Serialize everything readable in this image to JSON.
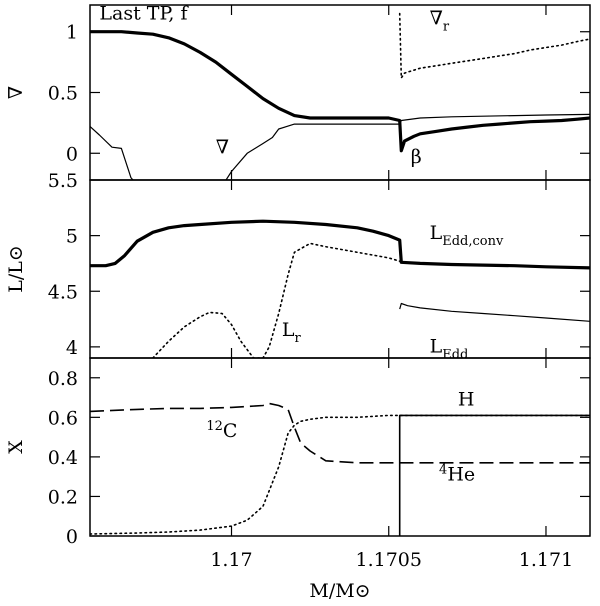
{
  "chart_data": {
    "type": "line",
    "xlabel": "M/M⊙",
    "x_ticks": [
      {
        "value": 1.17,
        "label": "1.17"
      },
      {
        "value": 1.1705,
        "label": "1.1705"
      },
      {
        "value": 1.171,
        "label": "1.171"
      }
    ],
    "xlim": [
      1.16955,
      1.17114
    ],
    "panels": [
      {
        "id": "top",
        "ylabel": "∇",
        "ylim": [
          -0.22,
          1.22
        ],
        "y_ticks": [
          {
            "value": 0,
            "label": "0"
          },
          {
            "value": 0.5,
            "label": "0.5"
          },
          {
            "value": 1,
            "label": "1"
          }
        ],
        "labels": [
          {
            "text": "Last TP, f",
            "x": 1.16958,
            "y": 1.1
          },
          {
            "text": "∇",
            "x": 1.16995,
            "y": 0.0
          },
          {
            "text": "β",
            "x": 1.17057,
            "y": -0.08
          }
        ],
        "sub_labels": [
          {
            "base": "∇",
            "sub": "r",
            "x": 1.17063,
            "y": 1.06
          }
        ],
        "series": [
          {
            "style": "thick",
            "x": [
              1.16955,
              1.1696,
              1.16965,
              1.1697,
              1.16975,
              1.1698,
              1.16985,
              1.1699,
              1.16995,
              1.17,
              1.17005,
              1.1701,
              1.17015,
              1.1702,
              1.17025,
              1.1703,
              1.17035,
              1.1704,
              1.17045,
              1.1705,
              1.170535,
              1.17054,
              1.17055,
              1.17058,
              1.1706,
              1.17065,
              1.1707,
              1.17075,
              1.1708,
              1.17085,
              1.1709,
              1.17095,
              1.171,
              1.17105,
              1.1711,
              1.17114
            ],
            "y": [
              1.0,
              1.0,
              1.0,
              0.99,
              0.98,
              0.95,
              0.9,
              0.83,
              0.75,
              0.65,
              0.55,
              0.45,
              0.37,
              0.31,
              0.29,
              0.29,
              0.29,
              0.29,
              0.29,
              0.29,
              0.27,
              0.02,
              0.1,
              0.14,
              0.16,
              0.18,
              0.2,
              0.215,
              0.23,
              0.24,
              0.25,
              0.26,
              0.265,
              0.27,
              0.28,
              0.29
            ]
          },
          {
            "style": "thin",
            "x": [
              1.16955,
              1.16958,
              1.16962,
              1.16965,
              1.16968,
              1.16972
            ],
            "y": [
              0.22,
              0.15,
              0.05,
              0.04,
              -0.2,
              -0.32
            ]
          },
          {
            "style": "thin",
            "x": [
              1.16995,
              1.17,
              1.17005,
              1.1701,
              1.17013,
              1.17015,
              1.1702,
              1.1703,
              1.1704,
              1.1705,
              1.170535,
              1.17054,
              1.1706,
              1.1707,
              1.1708,
              1.1709,
              1.171,
              1.17114
            ],
            "y": [
              -0.35,
              -0.15,
              0.0,
              0.08,
              0.13,
              0.2,
              0.24,
              0.24,
              0.24,
              0.24,
              0.24,
              0.27,
              0.29,
              0.3,
              0.305,
              0.31,
              0.315,
              0.32
            ]
          },
          {
            "style": "dotted",
            "x": [
              1.170535,
              1.17054,
              1.17055,
              1.1706,
              1.17065,
              1.1707,
              1.17075,
              1.1708,
              1.17085,
              1.1709,
              1.17095,
              1.171,
              1.17105,
              1.1711,
              1.17114
            ],
            "y": [
              1.15,
              0.62,
              0.66,
              0.7,
              0.72,
              0.74,
              0.76,
              0.78,
              0.8,
              0.82,
              0.85,
              0.87,
              0.89,
              0.92,
              0.94
            ]
          }
        ]
      },
      {
        "id": "middle",
        "ylabel": "L/L⊙",
        "ylim": [
          3.9,
          5.5
        ],
        "y_ticks": [
          {
            "value": 4,
            "label": "4"
          },
          {
            "value": 4.5,
            "label": "4.5"
          },
          {
            "value": 5,
            "label": "5"
          },
          {
            "value": 5.5,
            "label": "5.5"
          }
        ],
        "sub_labels": [
          {
            "base": "L",
            "sub": "Edd,conv",
            "x": 1.17063,
            "y": 4.97
          },
          {
            "base": "L",
            "sub": "r",
            "x": 1.17016,
            "y": 4.1
          },
          {
            "base": "L",
            "sub": "Edd",
            "x": 1.17063,
            "y": 3.95
          }
        ],
        "series": [
          {
            "style": "thick",
            "x": [
              1.16955,
              1.1696,
              1.16963,
              1.16966,
              1.1697,
              1.16975,
              1.1698,
              1.16985,
              1.1699,
              1.17,
              1.1701,
              1.1702,
              1.1703,
              1.1704,
              1.17045,
              1.1705,
              1.170535,
              1.17054,
              1.1706,
              1.1707,
              1.1708,
              1.1709,
              1.171,
              1.17114
            ],
            "y": [
              4.73,
              4.73,
              4.75,
              4.82,
              4.95,
              5.03,
              5.07,
              5.09,
              5.1,
              5.12,
              5.13,
              5.12,
              5.1,
              5.07,
              5.04,
              5.0,
              4.96,
              4.76,
              4.75,
              4.74,
              4.735,
              4.73,
              4.72,
              4.71
            ]
          },
          {
            "style": "thin",
            "x": [
              1.170535,
              1.17054,
              1.17056,
              1.1706,
              1.1707,
              1.1708,
              1.1709,
              1.171,
              1.17114
            ],
            "y": [
              4.34,
              4.39,
              4.37,
              4.35,
              4.32,
              4.3,
              4.28,
              4.26,
              4.23
            ]
          },
          {
            "style": "dotted",
            "x": [
              1.16975,
              1.1698,
              1.16985,
              1.1699,
              1.16993,
              1.16997,
              1.17,
              1.17003,
              1.17007,
              1.1701,
              1.17012,
              1.17015,
              1.17018,
              1.1702,
              1.17025,
              1.1703,
              1.1704,
              1.1705,
              1.170535,
              1.17054,
              1.1706,
              1.1707,
              1.1708,
              1.1709,
              1.171,
              1.17114
            ],
            "y": [
              3.9,
              4.05,
              4.18,
              4.27,
              4.31,
              4.3,
              4.2,
              4.05,
              3.9,
              3.9,
              4.0,
              4.3,
              4.65,
              4.85,
              4.93,
              4.9,
              4.85,
              4.8,
              4.77,
              4.76,
              4.75,
              4.74,
              4.735,
              4.73,
              4.72,
              4.71
            ]
          }
        ]
      },
      {
        "id": "bottom",
        "ylabel": "X",
        "ylim": [
          0,
          0.9
        ],
        "y_ticks": [
          {
            "value": 0,
            "label": "0"
          },
          {
            "value": 0.2,
            "label": "0.2"
          },
          {
            "value": 0.4,
            "label": "0.4"
          },
          {
            "value": 0.6,
            "label": "0.6"
          },
          {
            "value": 0.8,
            "label": "0.8"
          }
        ],
        "labels": [
          {
            "text": "H",
            "x": 1.17072,
            "y": 0.66
          }
        ],
        "sup_labels": [
          {
            "sup": "12",
            "base": "C",
            "x": 1.16992,
            "y": 0.5
          },
          {
            "sup": "4",
            "base": "He",
            "x": 1.17066,
            "y": 0.28
          }
        ],
        "series": [
          {
            "style": "dashed",
            "x": [
              1.16955,
              1.1697,
              1.1698,
              1.1699,
              1.17,
              1.17005,
              1.1701,
              1.17012,
              1.17015,
              1.17018,
              1.1702,
              1.17022,
              1.17025,
              1.1703,
              1.1704,
              1.1705,
              1.170535,
              1.1706,
              1.1707,
              1.1708,
              1.1709,
              1.171,
              1.17114
            ],
            "y": [
              0.63,
              0.64,
              0.645,
              0.645,
              0.65,
              0.655,
              0.66,
              0.67,
              0.66,
              0.64,
              0.55,
              0.47,
              0.43,
              0.38,
              0.37,
              0.37,
              0.37,
              0.37,
              0.37,
              0.37,
              0.37,
              0.37,
              0.37
            ]
          },
          {
            "style": "dotted",
            "x": [
              1.16955,
              1.1697,
              1.1698,
              1.1699,
              1.17,
              1.17005,
              1.1701,
              1.17015,
              1.17018,
              1.1702,
              1.17022,
              1.17025,
              1.1703,
              1.1704,
              1.1705,
              1.170535,
              1.1706,
              1.1707,
              1.1708,
              1.1709,
              1.171,
              1.17114
            ],
            "y": [
              0.01,
              0.015,
              0.02,
              0.03,
              0.05,
              0.08,
              0.15,
              0.35,
              0.52,
              0.56,
              0.58,
              0.59,
              0.6,
              0.6,
              0.61,
              0.61,
              0.61,
              0.61,
              0.61,
              0.61,
              0.61,
              0.61
            ]
          },
          {
            "style": "solid",
            "x": [
              1.170535,
              1.170535,
              1.170535,
              1.17054,
              1.1706,
              1.1707,
              1.1708,
              1.1709,
              1.171,
              1.17114
            ],
            "y": [
              0.0,
              0.6,
              0.61,
              0.61,
              0.61,
              0.61,
              0.61,
              0.61,
              0.61,
              0.61
            ]
          }
        ]
      }
    ]
  }
}
